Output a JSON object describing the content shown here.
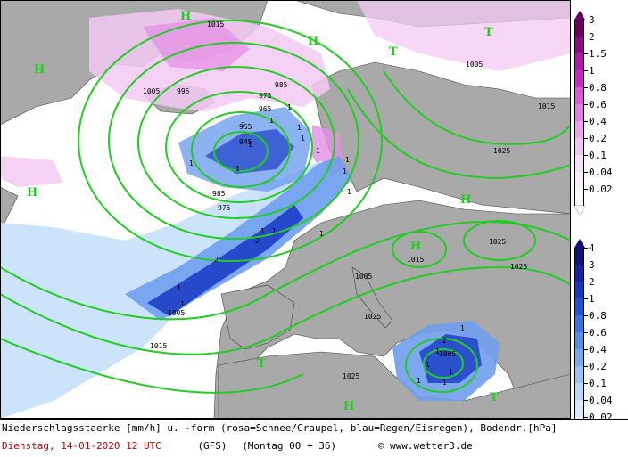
{
  "map": {
    "pressure_labels": [
      "1015",
      "995",
      "1005",
      "985",
      "975",
      "965",
      "955",
      "945",
      "1025",
      "1005",
      "1015",
      "1025",
      "1005",
      "985",
      "975",
      "1025",
      "1015",
      "1005",
      "1025",
      "1015",
      "1025",
      "1005"
    ],
    "high_labels": [
      "H",
      "H",
      "H",
      "H",
      "H",
      "H",
      "H"
    ],
    "low_labels": [
      "T",
      "T",
      "T",
      "T"
    ],
    "precip_marks": [
      "1",
      "1",
      "1",
      "1",
      "2",
      "1",
      "1",
      "1",
      "1",
      "1",
      "1",
      "1",
      "1",
      "2",
      "2",
      "1",
      "1",
      "1",
      "1",
      "2",
      "1",
      "1",
      "1",
      "1",
      "1",
      "1"
    ],
    "colors": {
      "land": "#a9a9a9",
      "sea": "#ffffff",
      "isobar": "#22cc22",
      "snow_light": "#f3c9f3",
      "snow_mid": "#e48ee4",
      "rain_light": "#c9e3fb",
      "rain_mid": "#6f9fee",
      "rain_dark": "#1d3fc8"
    }
  },
  "snow_scale": {
    "colors": [
      "#6b0060",
      "#8c0a86",
      "#ae1aa6",
      "#c72ac3",
      "#d95bd5",
      "#e27fe0",
      "#eba3ea",
      "#f2c6f2",
      "#f8e0f8",
      "#fcf0fc",
      "#ffffff"
    ],
    "labels": [
      "3",
      "2",
      "1.5",
      "1",
      "0.8",
      "0.6",
      "0.4",
      "0.2",
      "0.1",
      "0.04",
      "0.02"
    ]
  },
  "rain_scale": {
    "colors": [
      "#11127a",
      "#1520a4",
      "#1a35c6",
      "#2250dc",
      "#3a6fe6",
      "#5a8cec",
      "#7aa7f0",
      "#9cc2f4",
      "#bcd7f8",
      "#d8e8fb",
      "#eef5fd"
    ],
    "labels": [
      "4",
      "3",
      "2",
      "1",
      "0.8",
      "0.6",
      "0.4",
      "0.2",
      "0.1",
      "0.04",
      "0.02"
    ]
  },
  "footer": {
    "caption": "Niederschlagsstaerke [mm/h] u. -form (rosa=Schnee/Graupel, blau=Regen/Eisregen), Bodendr.[hPa]",
    "date": "Dienstag, 14-01-2020  12 UTC",
    "model": "(GFS)",
    "run": "(Montag 00 + 36)",
    "copyright_symbol": "©",
    "source": "www.wetter3.de"
  }
}
